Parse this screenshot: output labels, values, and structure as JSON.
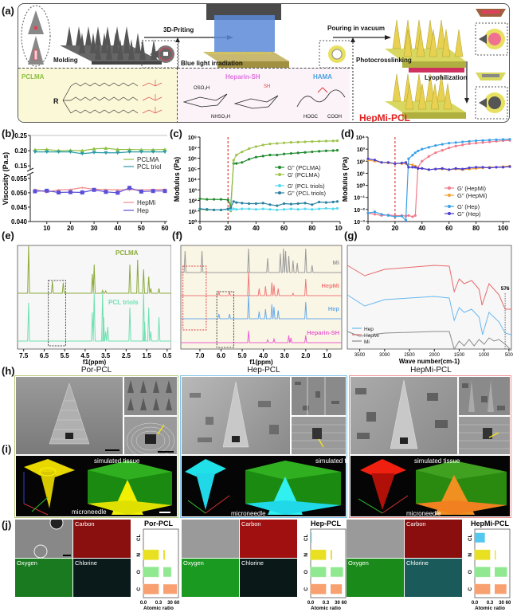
{
  "panel_labels": {
    "a": "(a)",
    "b": "(b)",
    "c": "(c)",
    "d": "(d)",
    "e": "(e)",
    "f": "(f)",
    "g": "(g)",
    "h": "(h)",
    "i": "(i)",
    "j": "(j)"
  },
  "panel_a": {
    "steps": [
      "Molding",
      "3D-Priting",
      "Blue light irradiation",
      "Pouring in vacuum",
      "Photocrosslinking",
      "Lyophilization"
    ],
    "product": "HepMi-PCL",
    "chem": {
      "pclma": "PCLMA",
      "r": "R",
      "heparin": "Heparin-SH",
      "hama": "HAMA",
      "oso3h": "OSO₃H",
      "nhso3h": "NHSO₃H",
      "cooh": "COOH",
      "hooc": "HOOC",
      "sh": "SH"
    }
  },
  "chart_data": [
    {
      "id": "b",
      "type": "line",
      "title": "",
      "xlabel": "Time (s)",
      "ylabel": "Viscosity (Pa.s)",
      "xlim": [
        3,
        61
      ],
      "xticks": [
        10,
        20,
        30,
        40,
        50,
        60
      ],
      "yticks_upper": [
        "0.15",
        "0.20",
        "0.25"
      ],
      "yticks_lower": [
        "0.040",
        "0.045",
        "0.050",
        "0.055"
      ],
      "x": [
        5,
        10,
        15,
        20,
        25,
        30,
        35,
        40,
        45,
        50,
        55,
        60
      ],
      "series": [
        {
          "name": "PCLMA",
          "color": "#8cbf3f",
          "values": [
            0.203,
            0.204,
            0.2,
            0.201,
            0.2,
            0.206,
            0.208,
            0.204,
            0.204,
            0.203,
            0.203,
            0.204
          ]
        },
        {
          "name": "PCL triol",
          "color": "#2a9aa8",
          "values": [
            0.196,
            0.196,
            0.196,
            0.196,
            0.19,
            0.194,
            0.193,
            0.193,
            0.196,
            0.196,
            0.196,
            0.196
          ]
        },
        {
          "name": "HepMi",
          "color": "#f08a8a",
          "values": [
            0.0512,
            0.0502,
            0.051,
            0.0511,
            0.0518,
            0.0512,
            0.0511,
            0.051,
            0.0511,
            0.051,
            0.0511,
            0.0512
          ]
        },
        {
          "name": "Hep",
          "color": "#5a4fd8",
          "values": [
            0.0505,
            0.0507,
            0.0501,
            0.0502,
            0.0501,
            0.051,
            0.0503,
            0.05,
            0.0517,
            0.0504,
            0.0506,
            0.0506
          ]
        }
      ]
    },
    {
      "id": "c",
      "type": "line",
      "xlabel": "Time (s)",
      "ylabel": "Modulus (Pa)",
      "yscale": "log",
      "xlim": [
        0,
        100
      ],
      "ylim_exp": [
        0,
        8
      ],
      "xticks": [
        0,
        20,
        40,
        60,
        80,
        100
      ],
      "yticks": [
        "10⁰",
        "10¹",
        "10²",
        "10³",
        "10⁴",
        "10⁵",
        "10⁶",
        "10⁷",
        "10⁸"
      ],
      "marker_line_x": 20,
      "x": [
        0,
        5,
        10,
        15,
        20,
        22,
        24,
        26,
        30,
        35,
        40,
        45,
        50,
        55,
        60,
        65,
        70,
        75,
        80,
        85,
        90,
        95,
        98
      ],
      "series": [
        {
          "name": "G'' (PCLMA)",
          "color": "#1f8a2e",
          "log_values": [
            2.15,
            2.1,
            2.1,
            2.1,
            2.05,
            1.5,
            5.5,
            5.5,
            5.6,
            5.9,
            6.1,
            6.2,
            6.3,
            6.3,
            6.4,
            6.45,
            6.5,
            6.55,
            6.6,
            6.65,
            6.7,
            6.72,
            6.75
          ]
        },
        {
          "name": "G' (PCLMA)",
          "color": "#9ec34a",
          "log_values": [
            1.15,
            1.1,
            1.1,
            1.1,
            1.15,
            1.0,
            5.8,
            6.3,
            6.6,
            6.9,
            7.1,
            7.25,
            7.35,
            7.4,
            7.45,
            7.5,
            7.52,
            7.55,
            7.58,
            7.6,
            7.62,
            7.63,
            7.65
          ]
        },
        {
          "name": "G' (PCL triols)",
          "color": "#55d8f0",
          "log_values": [
            1.2,
            1.15,
            1.1,
            1.1,
            1.15,
            1.1,
            1.2,
            1.15,
            1.2,
            1.2,
            1.15,
            1.2,
            1.15,
            1.1,
            1.15,
            1.2,
            1.15,
            1.2,
            1.15,
            1.2,
            1.25,
            1.2,
            1.25
          ]
        },
        {
          "name": "G'' (PCL triols)",
          "color": "#2a7fa0",
          "log_values": [
            1.2,
            1.15,
            1.1,
            1.1,
            1.2,
            1.3,
            1.9,
            1.8,
            1.75,
            1.7,
            1.7,
            1.75,
            1.6,
            1.5,
            1.7,
            1.65,
            1.7,
            1.75,
            1.6,
            1.85,
            1.8,
            1.85,
            1.9
          ]
        }
      ]
    },
    {
      "id": "d",
      "type": "line",
      "xlabel": "Time (s)",
      "ylabel": "Modulus (Pa)",
      "yscale": "log",
      "xlim": [
        0,
        105
      ],
      "ylim_exp": [
        -3,
        4
      ],
      "xticks": [
        0,
        20,
        40,
        60,
        80,
        100
      ],
      "yticks": [
        "10⁻³",
        "10⁻²",
        "10⁻¹",
        "10⁰",
        "10¹",
        "10²",
        "10³",
        "10⁴"
      ],
      "marker_line_x": 20,
      "x": [
        0,
        5,
        10,
        15,
        20,
        25,
        28,
        30,
        33,
        35,
        37,
        40,
        45,
        50,
        55,
        60,
        65,
        70,
        75,
        80,
        85,
        90,
        95,
        100,
        105
      ],
      "series": [
        {
          "name": "G' (HepMi)",
          "color": "#f07a8a",
          "log_values": [
            -2.3,
            -2.4,
            -2.5,
            -2.45,
            -2.5,
            -2.5,
            -2.55,
            -2.5,
            -2.6,
            -2.5,
            1.5,
            2.0,
            2.4,
            2.7,
            2.9,
            3.1,
            3.25,
            3.35,
            3.45,
            3.5,
            3.55,
            3.6,
            3.65,
            3.7,
            3.72
          ]
        },
        {
          "name": "G'' (HepMi)",
          "color": "#f5a030",
          "log_values": [
            2.1,
            2.0,
            1.9,
            1.85,
            1.8,
            1.8,
            1.8,
            1.75,
            1.7,
            1.6,
            1.4,
            1.4,
            1.3,
            1.35,
            1.35,
            1.3,
            1.35,
            1.3,
            1.35,
            1.4,
            1.45,
            1.5,
            1.5,
            1.55,
            1.6
          ]
        },
        {
          "name": "G' (Hep)",
          "color": "#3aa0e8",
          "log_values": [
            -2.3,
            -2.2,
            -2.4,
            -2.5,
            -2.6,
            -2.55,
            -2.9,
            2.2,
            2.5,
            2.7,
            2.85,
            3.0,
            3.15,
            3.3,
            3.4,
            3.5,
            3.55,
            3.6,
            3.65,
            3.7,
            3.72,
            3.75,
            3.78,
            3.8,
            3.82
          ]
        },
        {
          "name": "G'' (Hep)",
          "color": "#4a3fd0",
          "log_values": [
            2.2,
            2.1,
            1.9,
            1.9,
            1.8,
            1.85,
            1.9,
            1.5,
            1.5,
            1.5,
            1.4,
            1.4,
            1.3,
            1.35,
            1.4,
            1.3,
            1.4,
            1.35,
            1.45,
            1.5,
            1.5,
            1.45,
            1.5,
            1.5,
            1.55
          ]
        }
      ]
    },
    {
      "id": "e",
      "type": "line",
      "xlabel": "f1(ppm)",
      "xticks": [
        "7.5",
        "6.5",
        "5.5",
        "4.5",
        "3.5",
        "2.5",
        "1.5",
        "0.5"
      ],
      "xlim": [
        7.8,
        0.3
      ],
      "series": [
        {
          "name": "PCLMA",
          "color": "#8aaa3a",
          "peaks": [
            [
              7.26,
              1.0
            ],
            [
              6.1,
              0.25
            ],
            [
              5.57,
              0.22
            ],
            [
              4.15,
              0.4
            ],
            [
              4.06,
              0.6
            ],
            [
              3.65,
              0.06
            ],
            [
              3.5,
              0.05
            ],
            [
              2.32,
              0.6
            ],
            [
              1.94,
              0.7
            ],
            [
              1.65,
              0.5
            ],
            [
              1.4,
              0.35
            ],
            [
              1.3,
              0.1
            ],
            [
              0.9,
              0.1
            ]
          ]
        },
        {
          "name": "PCL triols",
          "color": "#6ee0b0",
          "peaks": [
            [
              7.26,
              0.8
            ],
            [
              4.15,
              0.6
            ],
            [
              4.06,
              1.0
            ],
            [
              3.65,
              1.0
            ],
            [
              3.6,
              0.5
            ],
            [
              3.5,
              0.2
            ],
            [
              3.4,
              0.3
            ],
            [
              2.32,
              0.7
            ],
            [
              1.65,
              1.0
            ],
            [
              1.6,
              0.4
            ],
            [
              1.4,
              0.7
            ],
            [
              1.3,
              0.2
            ],
            [
              0.9,
              0.5
            ]
          ]
        }
      ],
      "box_ppm": [
        6.3,
        5.45
      ]
    },
    {
      "id": "f",
      "type": "line",
      "xlabel": "f1(ppm)",
      "xticks": [
        "7.0",
        "6.0",
        "5.0",
        "4.0",
        "3.0",
        "2.0",
        "1.0"
      ],
      "xlim": [
        7.9,
        0.3
      ],
      "series": [
        {
          "name": "Mi",
          "color": "#9a9a9a"
        },
        {
          "name": "HepMi",
          "color": "#f07a7a"
        },
        {
          "name": "Hep",
          "color": "#6aaae8"
        },
        {
          "name": "Heparin-SH",
          "color": "#e860d0"
        }
      ],
      "boxes_ppm": [
        [
          7.8,
          6.7
        ],
        [
          6.2,
          5.4
        ]
      ]
    },
    {
      "id": "g",
      "type": "line",
      "xlabel": "Wave number(cm-1)",
      "xticks": [
        "3500",
        "3000",
        "2500",
        "2000",
        "1500",
        "1000",
        "500"
      ],
      "xlim": [
        3750,
        450
      ],
      "annotation": "576",
      "series": [
        {
          "name": "Hep",
          "color": "#6ab8f0"
        },
        {
          "name": "HepMi",
          "color": "#e86a6a"
        },
        {
          "name": "Mi",
          "color": "#8a8a8a"
        }
      ]
    },
    {
      "id": "j1",
      "type": "bar",
      "title": "Por-PCL",
      "xlabel": "Atomic ratio",
      "xticks": [
        "0.0",
        "0.3",
        "30",
        "60"
      ],
      "categories": [
        "CL",
        "N",
        "O",
        "C"
      ],
      "values": [
        0,
        7,
        35,
        60
      ],
      "colors": [
        "#55c8f0",
        "#e8e020",
        "#90e890",
        "#f8a070"
      ]
    },
    {
      "id": "j2",
      "type": "bar",
      "title": "Hep-PCL",
      "xlabel": "Atomic ratio",
      "xticks": [
        "0.0",
        "0.3",
        "30",
        "60"
      ],
      "categories": [
        "CL",
        "N",
        "O",
        "C"
      ],
      "values": [
        0.02,
        7,
        55,
        50
      ],
      "colors": [
        "#55c8f0",
        "#e8e020",
        "#90e890",
        "#f8a070"
      ]
    },
    {
      "id": "j3",
      "type": "bar",
      "title": "HepMi-PCL",
      "xlabel": "Atomic ratio",
      "xticks": [
        "0.0",
        "0.3",
        "30",
        "60"
      ],
      "categories": [
        "CL",
        "N",
        "O",
        "C"
      ],
      "values": [
        0.2,
        5,
        55,
        52
      ],
      "colors": [
        "#55c8f0",
        "#e8e020",
        "#90e890",
        "#f8a070"
      ]
    }
  ],
  "panel_h": {
    "titles": [
      "Por-PCL",
      "Hep-PCL",
      "HepMi-PCL"
    ],
    "frame_colors": [
      "#b8c878",
      "#7ac0e8",
      "#f09090"
    ]
  },
  "panel_i": {
    "tissue_label": "simulated tissue",
    "needle_label": "microneedle",
    "colors": [
      "#f0e000",
      "#30e8f0",
      "#f02010"
    ]
  },
  "panel_j": {
    "maps": [
      "Carbon",
      "Oxygen",
      "Chlorine"
    ]
  }
}
